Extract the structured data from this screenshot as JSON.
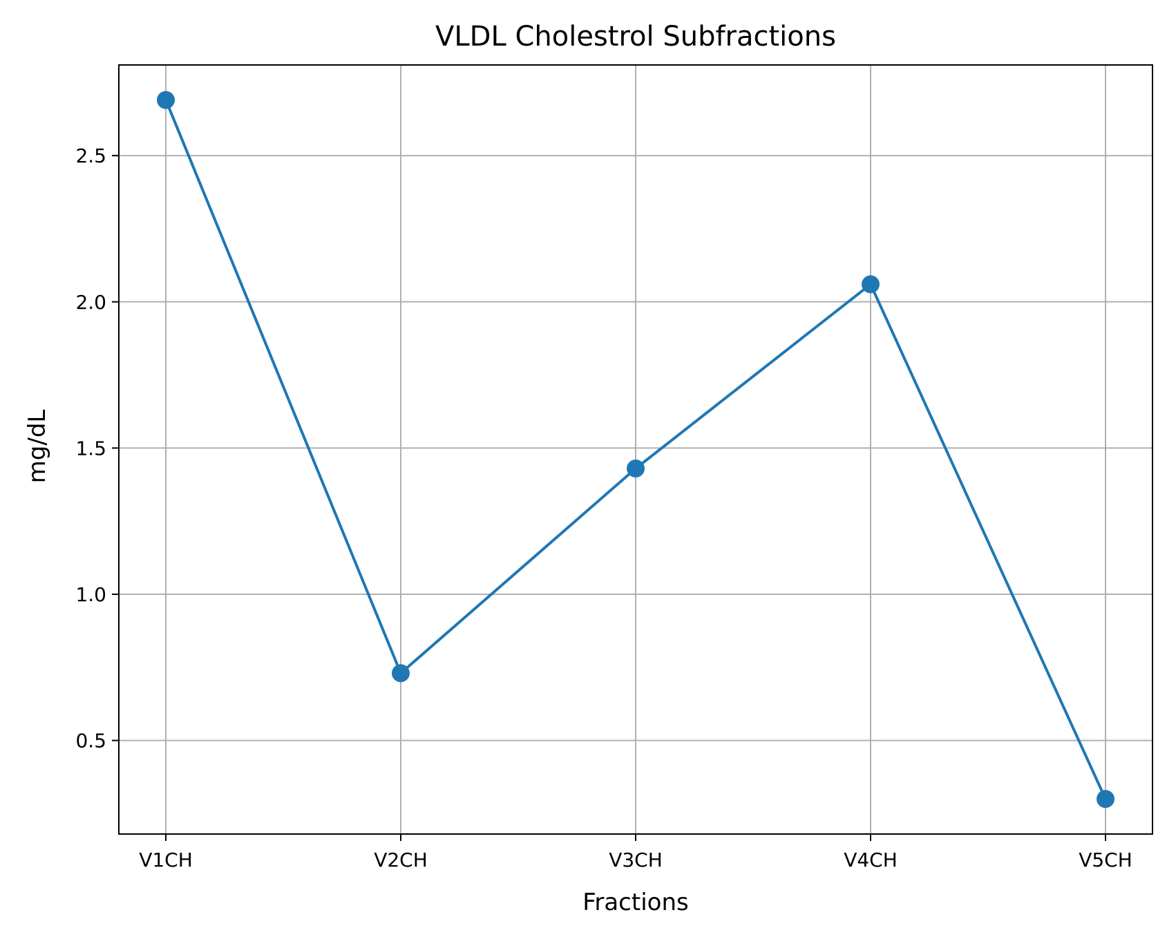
{
  "chart_data": {
    "type": "line",
    "title": "VLDL Cholestrol Subfractions",
    "xlabel": "Fractions",
    "ylabel": "mg/dL",
    "categories": [
      "V1CH",
      "V2CH",
      "V3CH",
      "V4CH",
      "V5CH"
    ],
    "series": [
      {
        "values": [
          2.69,
          0.73,
          1.43,
          2.06,
          0.3
        ],
        "color": "#1f77b4",
        "marker": "circle"
      }
    ],
    "ylim": [
      0.18,
      2.81
    ],
    "yticks": [
      0.5,
      1.0,
      1.5,
      2.0,
      2.5
    ],
    "ytick_labels": [
      "0.5",
      "1.0",
      "1.5",
      "2.0",
      "2.5"
    ],
    "grid": true,
    "grid_color": "#b0b0b0",
    "legend": "none"
  }
}
